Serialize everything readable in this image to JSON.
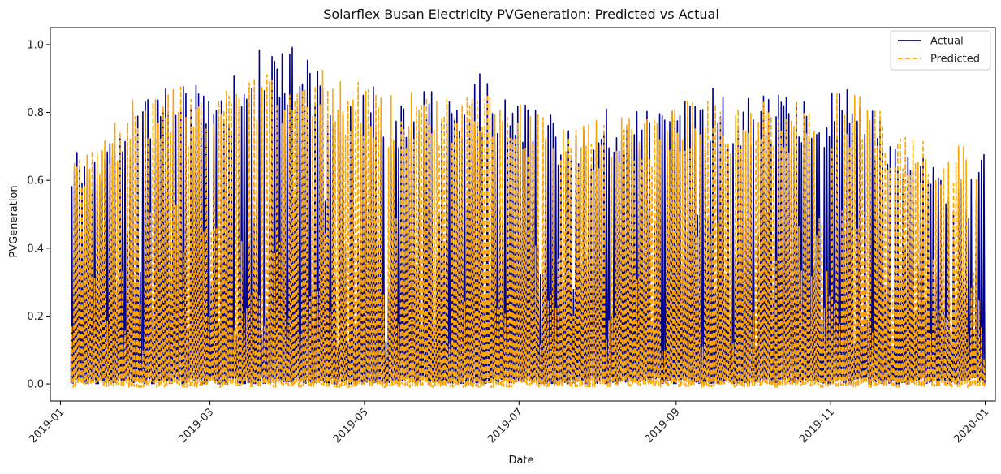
{
  "chart_data": {
    "type": "line",
    "title": "Solarflex Busan Electricity PVGeneration: Predicted vs Actual",
    "xlabel": "Date",
    "ylabel": "PVGeneration",
    "x_range": [
      "2018-12-28",
      "2020-01-05"
    ],
    "ylim": [
      -0.05,
      1.05
    ],
    "y_ticks": [
      0.0,
      0.2,
      0.4,
      0.6,
      0.8,
      1.0
    ],
    "y_tick_labels": [
      "0.0",
      "0.2",
      "0.4",
      "0.6",
      "0.8",
      "1.0"
    ],
    "x_ticks": [
      "2019-01-01",
      "2019-03-01",
      "2019-05-01",
      "2019-07-01",
      "2019-09-01",
      "2019-11-01",
      "2020-01-01"
    ],
    "x_tick_labels": [
      "2019-01",
      "2019-03",
      "2019-05",
      "2019-07",
      "2019-09",
      "2019-11",
      "2020-01"
    ],
    "grid": false,
    "legend_position": "top-right",
    "data_description": "Daily peak PVGeneration from 2019-01-05 to 2019-12-31 (each series oscillates daily between ~0 at night and this peak).",
    "series": [
      {
        "name": "Actual",
        "color": "#00008b",
        "style": "solid",
        "x": [
          "2019-01-05",
          "2019-01-15",
          "2019-01-25",
          "2019-02-05",
          "2019-02-15",
          "2019-02-25",
          "2019-03-05",
          "2019-03-15",
          "2019-03-25",
          "2019-04-05",
          "2019-04-15",
          "2019-04-25",
          "2019-05-05",
          "2019-05-15",
          "2019-05-25",
          "2019-06-05",
          "2019-06-15",
          "2019-06-25",
          "2019-07-05",
          "2019-07-15",
          "2019-07-25",
          "2019-08-05",
          "2019-08-15",
          "2019-08-25",
          "2019-09-05",
          "2019-09-15",
          "2019-09-25",
          "2019-10-05",
          "2019-10-15",
          "2019-10-25",
          "2019-11-05",
          "2019-11-15",
          "2019-11-25",
          "2019-12-05",
          "2019-12-15",
          "2019-12-25",
          "2019-12-31"
        ],
        "y": [
          0.7,
          0.71,
          0.8,
          0.88,
          0.92,
          0.87,
          0.88,
          0.97,
          1.0,
          0.99,
          0.9,
          0.85,
          0.88,
          0.85,
          0.89,
          0.86,
          0.92,
          0.85,
          0.88,
          0.78,
          0.75,
          0.82,
          0.84,
          0.8,
          0.85,
          0.88,
          0.83,
          0.87,
          0.86,
          0.85,
          0.88,
          0.83,
          0.75,
          0.7,
          0.65,
          0.6,
          0.74
        ]
      },
      {
        "name": "Predicted",
        "color": "#ffa500",
        "style": "dashed",
        "x": [
          "2019-01-05",
          "2019-01-15",
          "2019-01-25",
          "2019-02-05",
          "2019-02-15",
          "2019-02-25",
          "2019-03-05",
          "2019-03-15",
          "2019-03-25",
          "2019-04-05",
          "2019-04-15",
          "2019-04-25",
          "2019-05-05",
          "2019-05-15",
          "2019-05-25",
          "2019-06-05",
          "2019-06-15",
          "2019-06-25",
          "2019-07-05",
          "2019-07-15",
          "2019-07-25",
          "2019-08-05",
          "2019-08-15",
          "2019-08-25",
          "2019-09-05",
          "2019-09-15",
          "2019-09-25",
          "2019-10-05",
          "2019-10-15",
          "2019-10-25",
          "2019-11-05",
          "2019-11-15",
          "2019-11-25",
          "2019-12-05",
          "2019-12-15",
          "2019-12-25",
          "2019-12-31"
        ],
        "y": [
          0.7,
          0.7,
          0.82,
          0.88,
          0.88,
          0.85,
          0.86,
          0.94,
          0.92,
          0.91,
          0.93,
          0.9,
          0.87,
          0.86,
          0.87,
          0.85,
          0.86,
          0.84,
          0.83,
          0.75,
          0.76,
          0.79,
          0.82,
          0.78,
          0.84,
          0.86,
          0.82,
          0.85,
          0.84,
          0.84,
          0.87,
          0.86,
          0.77,
          0.74,
          0.72,
          0.71,
          0.73
        ]
      }
    ]
  }
}
